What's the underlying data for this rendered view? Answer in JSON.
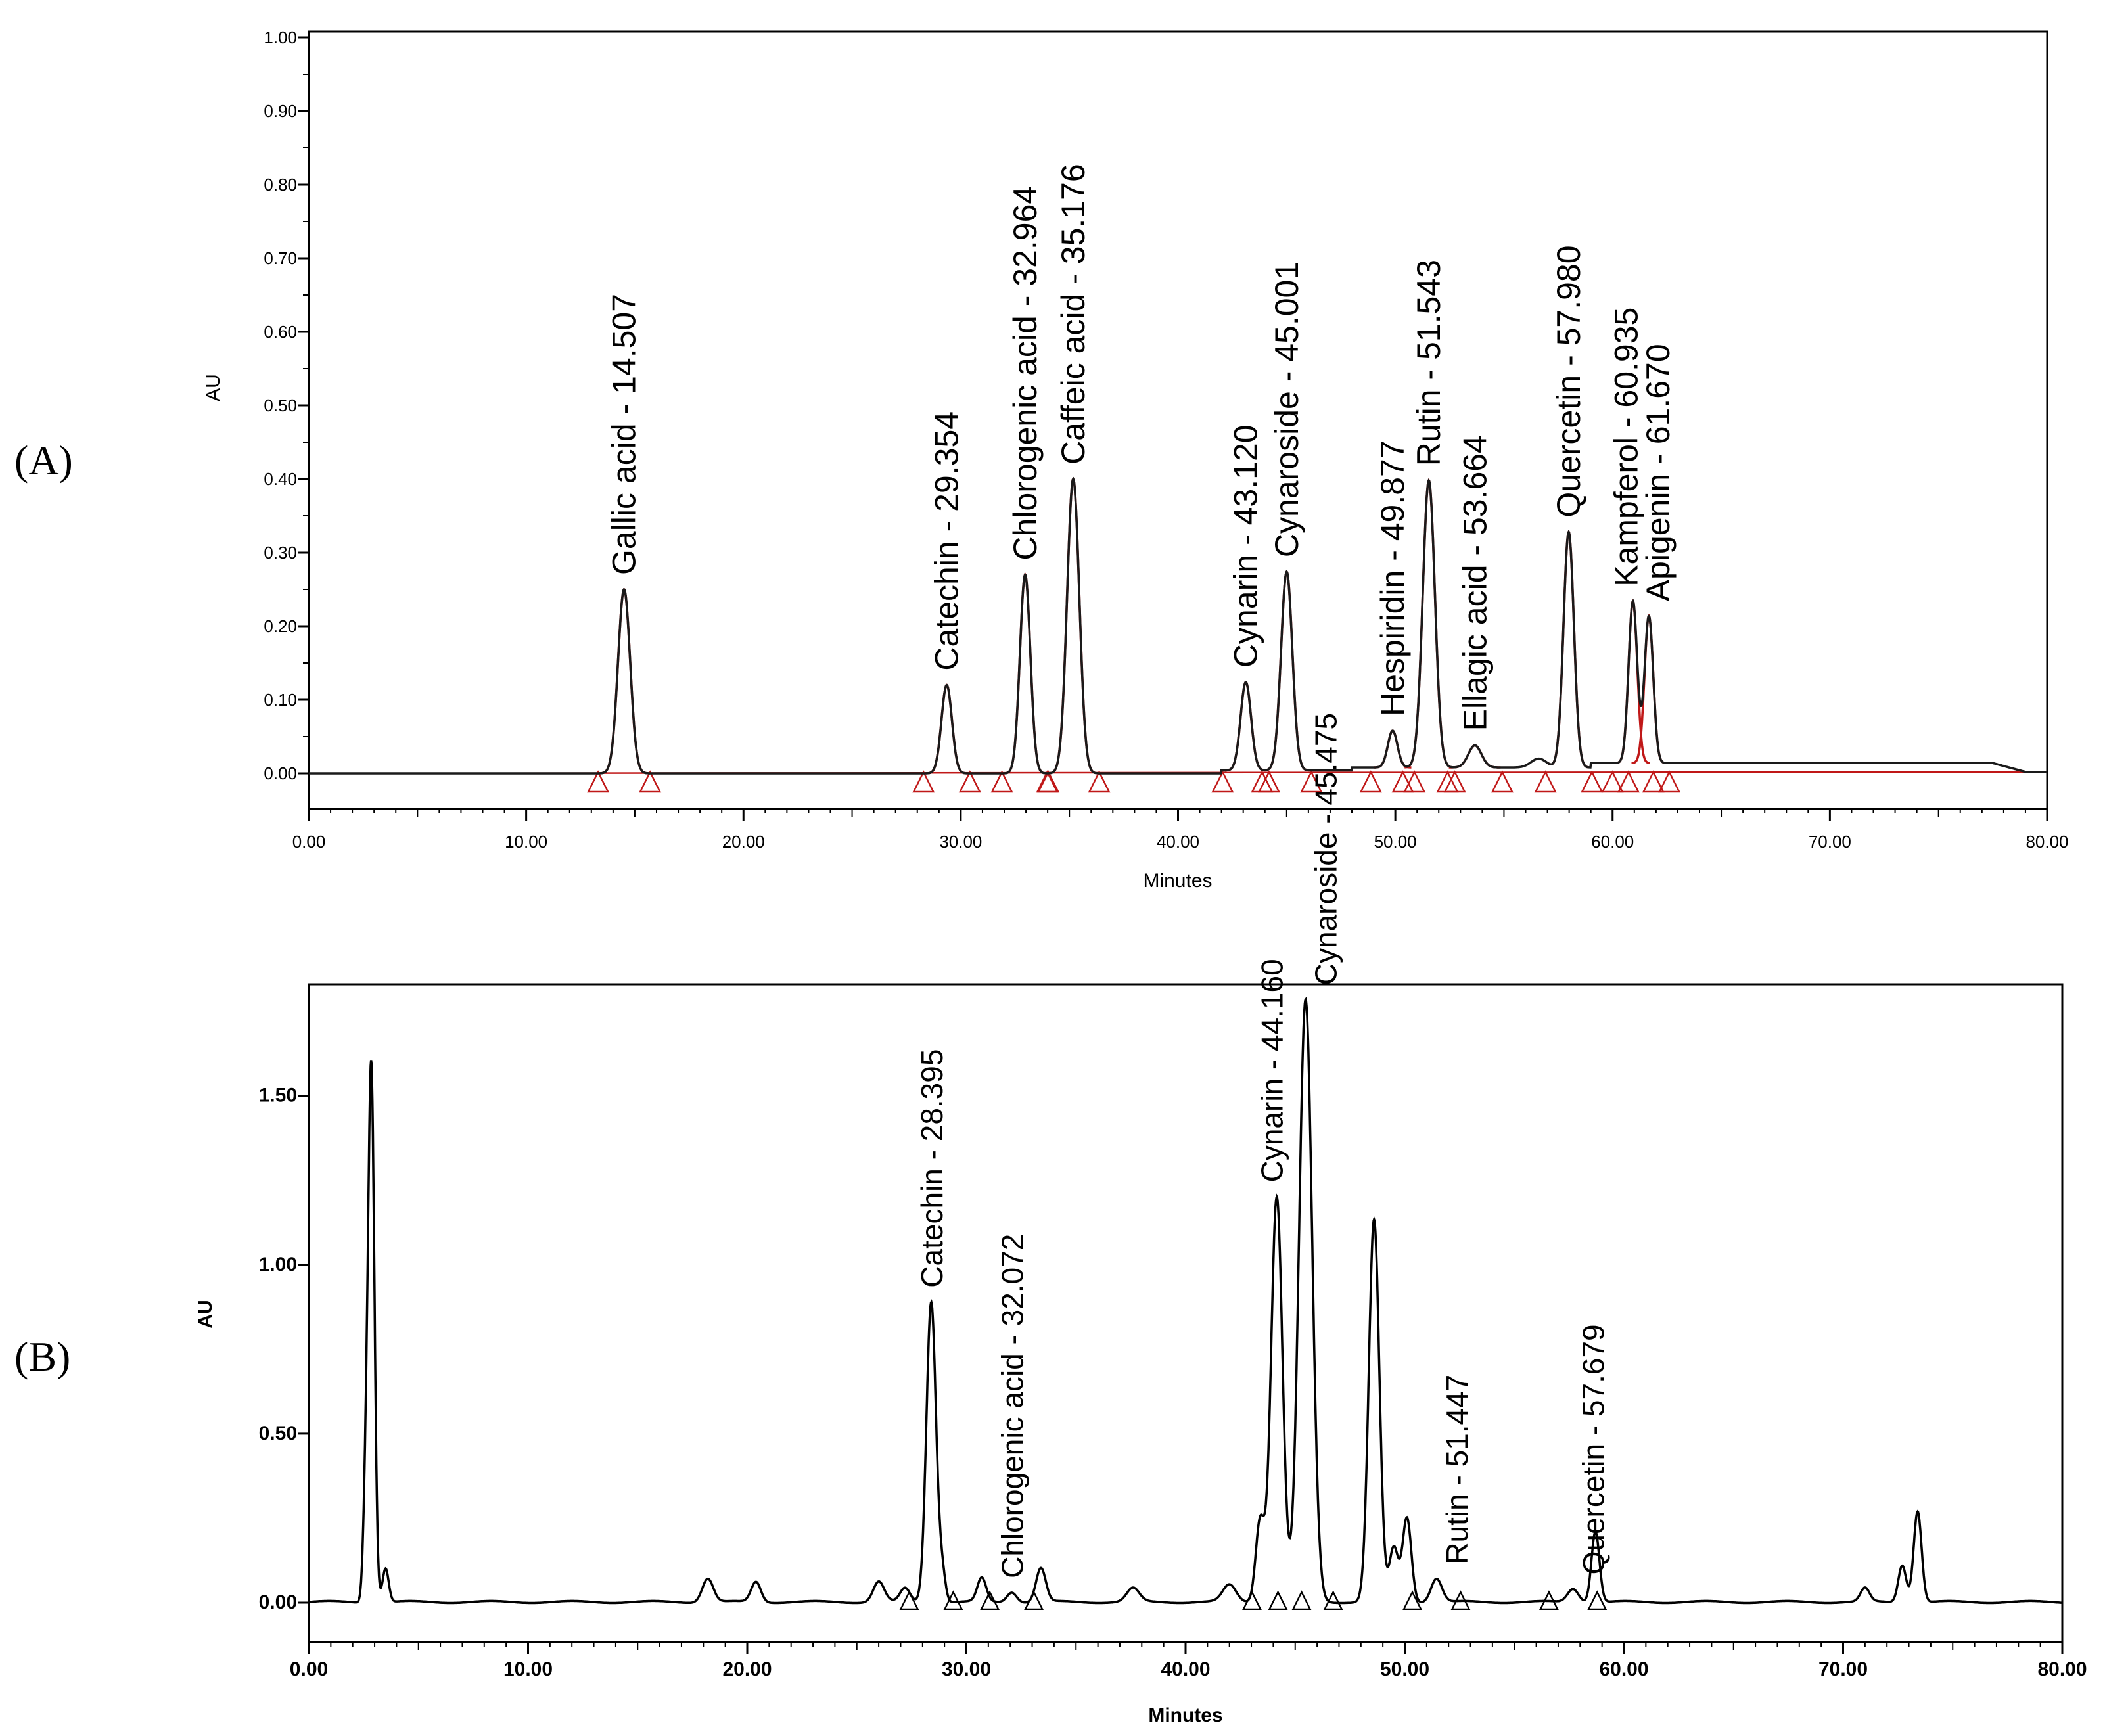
{
  "chart_data": [
    {
      "type": "line",
      "panel_label": "(A)",
      "xlabel": "Minutes",
      "ylabel": "AU",
      "xlim": [
        0,
        80
      ],
      "ylim": [
        -0.05,
        1.0
      ],
      "x_ticks": [
        "0.00",
        "10.00",
        "20.00",
        "30.00",
        "40.00",
        "50.00",
        "60.00",
        "70.00",
        "80.00"
      ],
      "y_ticks": [
        "0.00",
        "0.10",
        "0.20",
        "0.30",
        "0.40",
        "0.50",
        "0.60",
        "0.70",
        "0.80",
        "0.90",
        "1.00"
      ],
      "line_color": "#c01818",
      "baseline_color": "#c01818",
      "marker_color": "#c01818",
      "grid": false,
      "peaks": [
        {
          "rt": 14.507,
          "height": 0.25,
          "width": 0.28,
          "label": "Gallic acid - 14.507"
        },
        {
          "rt": 29.354,
          "height": 0.12,
          "width": 0.24,
          "label": "Catechin - 29.354"
        },
        {
          "rt": 32.964,
          "height": 0.27,
          "width": 0.24,
          "label": "Chlorogenic acid - 32.964"
        },
        {
          "rt": 35.176,
          "height": 0.4,
          "width": 0.28,
          "label": "Caffeic acid - 35.176"
        },
        {
          "rt": 43.12,
          "height": 0.12,
          "width": 0.24,
          "label": "Cynarin - 43.120"
        },
        {
          "rt": 45.001,
          "height": 0.27,
          "width": 0.26,
          "label": "Cynaroside - 45.001"
        },
        {
          "rt": 49.877,
          "height": 0.05,
          "width": 0.22,
          "label": "Hespiridin - 49.877"
        },
        {
          "rt": 51.543,
          "height": 0.39,
          "width": 0.28,
          "label": "Rutin - 51.543"
        },
        {
          "rt": 53.664,
          "height": 0.03,
          "width": 0.3,
          "label": "Ellagic acid - 53.664"
        },
        {
          "rt": 57.98,
          "height": 0.32,
          "width": 0.24,
          "label": "Quercetin - 57.980"
        },
        {
          "rt": 60.935,
          "height": 0.22,
          "width": 0.2,
          "label": "Kampferol - 60.935"
        },
        {
          "rt": 61.67,
          "height": 0.2,
          "width": 0.2,
          "label": "Apigenin - 61.670"
        }
      ]
    },
    {
      "type": "line",
      "panel_label": "(B)",
      "xlabel": "Minutes",
      "ylabel": "AU",
      "xlim": [
        0,
        80
      ],
      "ylim": [
        -0.08,
        1.9
      ],
      "x_ticks": [
        "0.00",
        "10.00",
        "20.00",
        "30.00",
        "40.00",
        "50.00",
        "60.00",
        "70.00",
        "80.00"
      ],
      "y_ticks": [
        "0.00",
        "0.50",
        "1.00",
        "1.50"
      ],
      "line_color": "#000000",
      "marker_color": "#000000",
      "grid": false,
      "peaks": [
        {
          "rt": 2.6,
          "height": 0.3,
          "width": 0.12
        },
        {
          "rt": 2.85,
          "height": 1.57,
          "width": 0.14
        },
        {
          "rt": 3.5,
          "height": 0.1,
          "width": 0.14
        },
        {
          "rt": 18.2,
          "height": 0.07,
          "width": 0.25
        },
        {
          "rt": 20.4,
          "height": 0.06,
          "width": 0.22
        },
        {
          "rt": 26.0,
          "height": 0.06,
          "width": 0.25
        },
        {
          "rt": 27.2,
          "height": 0.04,
          "width": 0.22
        },
        {
          "rt": 28.395,
          "height": 0.89,
          "width": 0.22,
          "label": "Catechin - 28.395"
        },
        {
          "rt": 28.9,
          "height": 0.08,
          "width": 0.15
        },
        {
          "rt": 30.7,
          "height": 0.07,
          "width": 0.2
        },
        {
          "rt": 32.072,
          "height": 0.03,
          "width": 0.22,
          "label": "Chlorogenic acid - 32.072"
        },
        {
          "rt": 33.4,
          "height": 0.1,
          "width": 0.22
        },
        {
          "rt": 37.6,
          "height": 0.04,
          "width": 0.28
        },
        {
          "rt": 42.0,
          "height": 0.05,
          "width": 0.3
        },
        {
          "rt": 43.4,
          "height": 0.24,
          "width": 0.2
        },
        {
          "rt": 44.16,
          "height": 1.2,
          "width": 0.26,
          "label": "Cynarin - 44.160"
        },
        {
          "rt": 45.475,
          "height": 1.78,
          "width": 0.3,
          "label": "Cynaroside - 45.475"
        },
        {
          "rt": 48.6,
          "height": 1.13,
          "width": 0.24
        },
        {
          "rt": 49.5,
          "height": 0.16,
          "width": 0.2
        },
        {
          "rt": 50.1,
          "height": 0.25,
          "width": 0.2
        },
        {
          "rt": 51.447,
          "height": 0.07,
          "width": 0.25,
          "label": "Rutin - 51.447"
        },
        {
          "rt": 57.679,
          "height": 0.04,
          "width": 0.25,
          "label": "Quercetin - 57.679"
        },
        {
          "rt": 58.7,
          "height": 0.21,
          "width": 0.18
        },
        {
          "rt": 71.0,
          "height": 0.04,
          "width": 0.2
        },
        {
          "rt": 72.7,
          "height": 0.11,
          "width": 0.18
        },
        {
          "rt": 73.4,
          "height": 0.27,
          "width": 0.18
        }
      ]
    }
  ]
}
